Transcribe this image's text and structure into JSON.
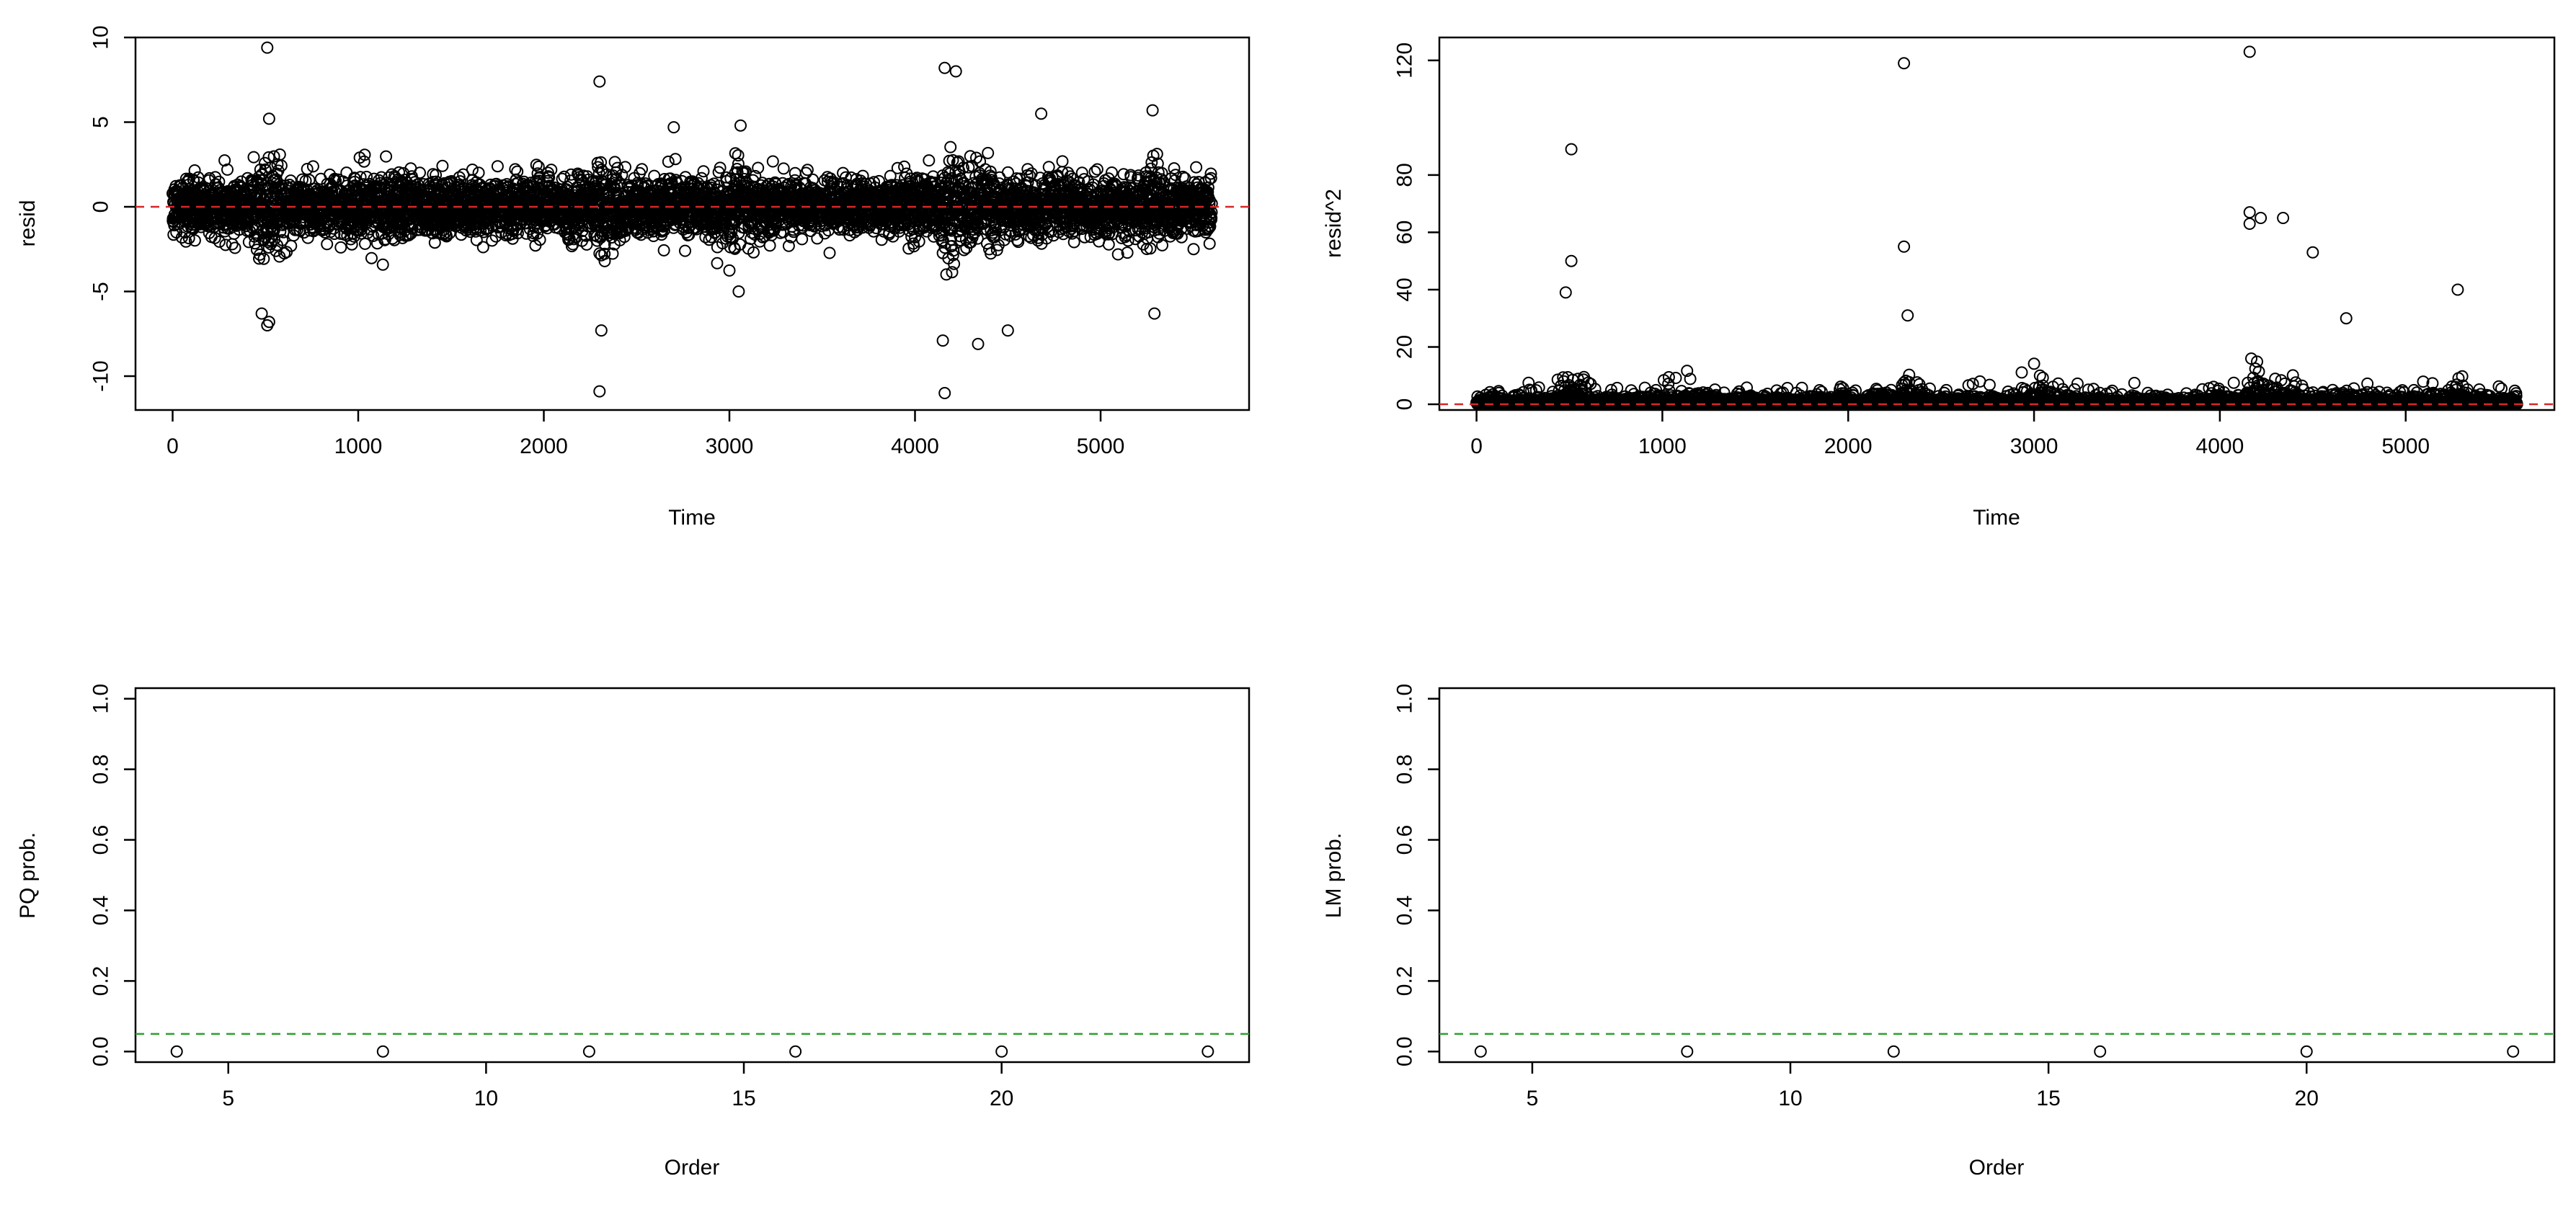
{
  "chart_data": [
    {
      "type": "scatter",
      "title": "",
      "xlabel": "Time",
      "ylabel": "resid",
      "xlim": [
        -200,
        5800
      ],
      "ylim": [
        -12,
        10
      ],
      "x_ticks": [
        0,
        1000,
        2000,
        3000,
        4000,
        5000
      ],
      "y_ticks": [
        -10,
        -5,
        0,
        5,
        10
      ],
      "n_points": 5600,
      "typical_sd": 1.0,
      "notable_points": [
        {
          "x": 510,
          "y": 9.4
        },
        {
          "x": 520,
          "y": 5.2
        },
        {
          "x": 480,
          "y": -6.3
        },
        {
          "x": 510,
          "y": -7.0
        },
        {
          "x": 520,
          "y": -6.8
        },
        {
          "x": 2300,
          "y": 7.4
        },
        {
          "x": 2310,
          "y": -7.3
        },
        {
          "x": 2300,
          "y": -10.9
        },
        {
          "x": 2700,
          "y": 4.7
        },
        {
          "x": 3050,
          "y": -5.0
        },
        {
          "x": 3060,
          "y": 4.8
        },
        {
          "x": 4160,
          "y": 8.2
        },
        {
          "x": 4220,
          "y": 8.0
        },
        {
          "x": 4160,
          "y": -11.0
        },
        {
          "x": 4150,
          "y": -7.9
        },
        {
          "x": 4340,
          "y": -8.1
        },
        {
          "x": 4500,
          "y": -7.3
        },
        {
          "x": 4680,
          "y": 5.5
        },
        {
          "x": 5280,
          "y": 5.7
        },
        {
          "x": 5290,
          "y": -6.3
        }
      ],
      "reference_line": {
        "y": 0,
        "color": "#d62728",
        "style": "dashed"
      },
      "marker": "open-circle"
    },
    {
      "type": "scatter",
      "title": "",
      "xlabel": "Time",
      "ylabel": "resid^2",
      "xlim": [
        -200,
        5800
      ],
      "ylim": [
        -2,
        128
      ],
      "x_ticks": [
        0,
        1000,
        2000,
        3000,
        4000,
        5000
      ],
      "y_ticks": [
        0,
        20,
        40,
        60,
        80,
        120
      ],
      "n_points": 5600,
      "notable_points": [
        {
          "x": 510,
          "y": 89
        },
        {
          "x": 510,
          "y": 50
        },
        {
          "x": 2300,
          "y": 119
        },
        {
          "x": 2300,
          "y": 55
        },
        {
          "x": 4160,
          "y": 123
        },
        {
          "x": 4160,
          "y": 67
        },
        {
          "x": 4160,
          "y": 63
        },
        {
          "x": 4220,
          "y": 65
        },
        {
          "x": 4340,
          "y": 65
        },
        {
          "x": 4500,
          "y": 53
        },
        {
          "x": 4680,
          "y": 30
        },
        {
          "x": 5280,
          "y": 40
        },
        {
          "x": 2320,
          "y": 31
        },
        {
          "x": 480,
          "y": 39
        }
      ],
      "reference_line": {
        "y": 0,
        "color": "#d62728",
        "style": "dashed"
      },
      "marker": "open-circle"
    },
    {
      "type": "scatter",
      "title": "",
      "xlabel": "Order",
      "ylabel": "PQ prob.",
      "xlim": [
        3.2,
        24.8
      ],
      "ylim": [
        -0.03,
        1.03
      ],
      "x_ticks": [
        5,
        10,
        15,
        20
      ],
      "y_ticks": [
        0.0,
        0.2,
        0.4,
        0.6,
        0.8,
        1.0
      ],
      "x": [
        4,
        8,
        12,
        16,
        20,
        24
      ],
      "y": [
        0,
        0,
        0,
        0,
        0,
        0
      ],
      "reference_line": {
        "y": 0.05,
        "color": "#2ca02c",
        "style": "dashed"
      },
      "marker": "open-circle"
    },
    {
      "type": "scatter",
      "title": "",
      "xlabel": "Order",
      "ylabel": "LM prob.",
      "xlim": [
        3.2,
        24.8
      ],
      "ylim": [
        -0.03,
        1.03
      ],
      "x_ticks": [
        5,
        10,
        15,
        20
      ],
      "y_ticks": [
        0.0,
        0.2,
        0.4,
        0.6,
        0.8,
        1.0
      ],
      "x": [
        4,
        8,
        12,
        16,
        20,
        24
      ],
      "y": [
        0,
        0,
        0,
        0,
        0,
        0
      ],
      "reference_line": {
        "y": 0.05,
        "color": "#2ca02c",
        "style": "dashed"
      },
      "marker": "open-circle"
    }
  ]
}
